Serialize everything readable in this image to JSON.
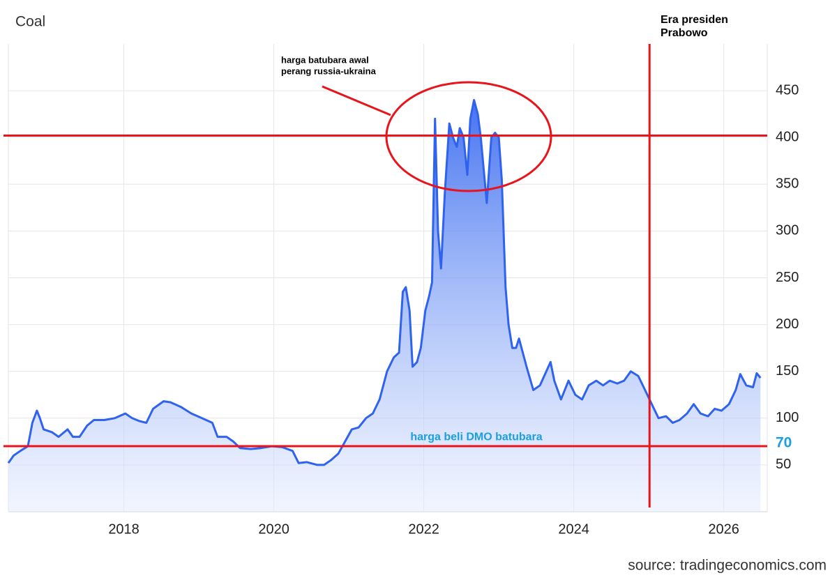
{
  "chart_data": {
    "type": "area",
    "title": "Coal",
    "source": "source: tradingeconomics.com",
    "series": [
      {
        "name": "Coal",
        "color": "#2f62ee",
        "x": [
          2016.46,
          2016.53,
          2016.62,
          2016.72,
          2016.78,
          2016.84,
          2016.88,
          2016.93,
          2017.04,
          2017.13,
          2017.25,
          2017.32,
          2017.41,
          2017.51,
          2017.6,
          2017.74,
          2017.88,
          2018.02,
          2018.11,
          2018.2,
          2018.3,
          2018.39,
          2018.53,
          2018.62,
          2018.76,
          2018.9,
          2019.04,
          2019.18,
          2019.25,
          2019.37,
          2019.46,
          2019.55,
          2019.69,
          2019.83,
          2019.97,
          2020.11,
          2020.25,
          2020.33,
          2020.44,
          2020.58,
          2020.67,
          2020.76,
          2020.86,
          2020.95,
          2021.04,
          2021.13,
          2021.23,
          2021.32,
          2021.41,
          2021.51,
          2021.6,
          2021.67,
          2021.72,
          2021.76,
          2021.81,
          2021.85,
          2021.91,
          2021.96,
          2022.02,
          2022.07,
          2022.11,
          2022.15,
          2022.19,
          2022.23,
          2022.28,
          2022.34,
          2022.39,
          2022.44,
          2022.48,
          2022.53,
          2022.58,
          2022.62,
          2022.67,
          2022.72,
          2022.76,
          2022.84,
          2022.9,
          2022.95,
          2023.0,
          2023.04,
          2023.09,
          2023.13,
          2023.18,
          2023.23,
          2023.27,
          2023.37,
          2023.46,
          2023.55,
          2023.69,
          2023.74,
          2023.83,
          2023.93,
          2024.02,
          2024.11,
          2024.2,
          2024.3,
          2024.39,
          2024.48,
          2024.58,
          2024.67,
          2024.76,
          2024.86,
          2024.95,
          2025.04,
          2025.13,
          2025.23,
          2025.32,
          2025.41,
          2025.51,
          2025.6,
          2025.69,
          2025.79,
          2025.88,
          2025.97,
          2026.07,
          2026.16,
          2026.22,
          2026.3,
          2026.39,
          2026.44,
          2026.49
        ],
        "values": [
          52,
          60,
          65,
          70,
          95,
          108,
          100,
          88,
          85,
          80,
          88,
          80,
          80,
          92,
          98,
          98,
          100,
          105,
          100,
          97,
          95,
          110,
          118,
          117,
          112,
          105,
          100,
          95,
          80,
          80,
          75,
          68,
          67,
          68,
          70,
          69,
          65,
          52,
          53,
          50,
          50,
          55,
          62,
          75,
          88,
          90,
          100,
          105,
          120,
          150,
          165,
          170,
          235,
          240,
          215,
          155,
          160,
          175,
          215,
          230,
          245,
          420,
          300,
          260,
          340,
          415,
          400,
          390,
          410,
          400,
          360,
          420,
          440,
          425,
          400,
          330,
          400,
          405,
          400,
          355,
          240,
          200,
          175,
          175,
          185,
          155,
          130,
          135,
          160,
          140,
          120,
          140,
          125,
          120,
          135,
          140,
          135,
          140,
          137,
          140,
          150,
          145,
          130,
          115,
          100,
          102,
          95,
          98,
          105,
          115,
          105,
          102,
          110,
          108,
          115,
          130,
          147,
          135,
          133,
          148,
          143
        ]
      }
    ],
    "xlim": [
      2016.46,
      2026.58
    ],
    "xticks": [
      2018,
      2020,
      2022,
      2024,
      2026
    ],
    "ylim": [
      0,
      500
    ],
    "yticks": [
      50,
      100,
      150,
      200,
      250,
      300,
      350,
      400,
      450
    ],
    "grid": true,
    "reference_lines": [
      {
        "value": 402,
        "color": "#e8141b"
      },
      {
        "value": 70,
        "color": "#e8141b",
        "label": "harga beli DMO batubara",
        "label_color": "#1a9fe0"
      }
    ],
    "vertical_line": {
      "x": 2025.01,
      "color": "#e8141b",
      "label": [
        "Era presiden",
        "Prabowo"
      ]
    },
    "annotation": [
      "harga batubara awal",
      "perang russia-ukraina"
    ]
  }
}
